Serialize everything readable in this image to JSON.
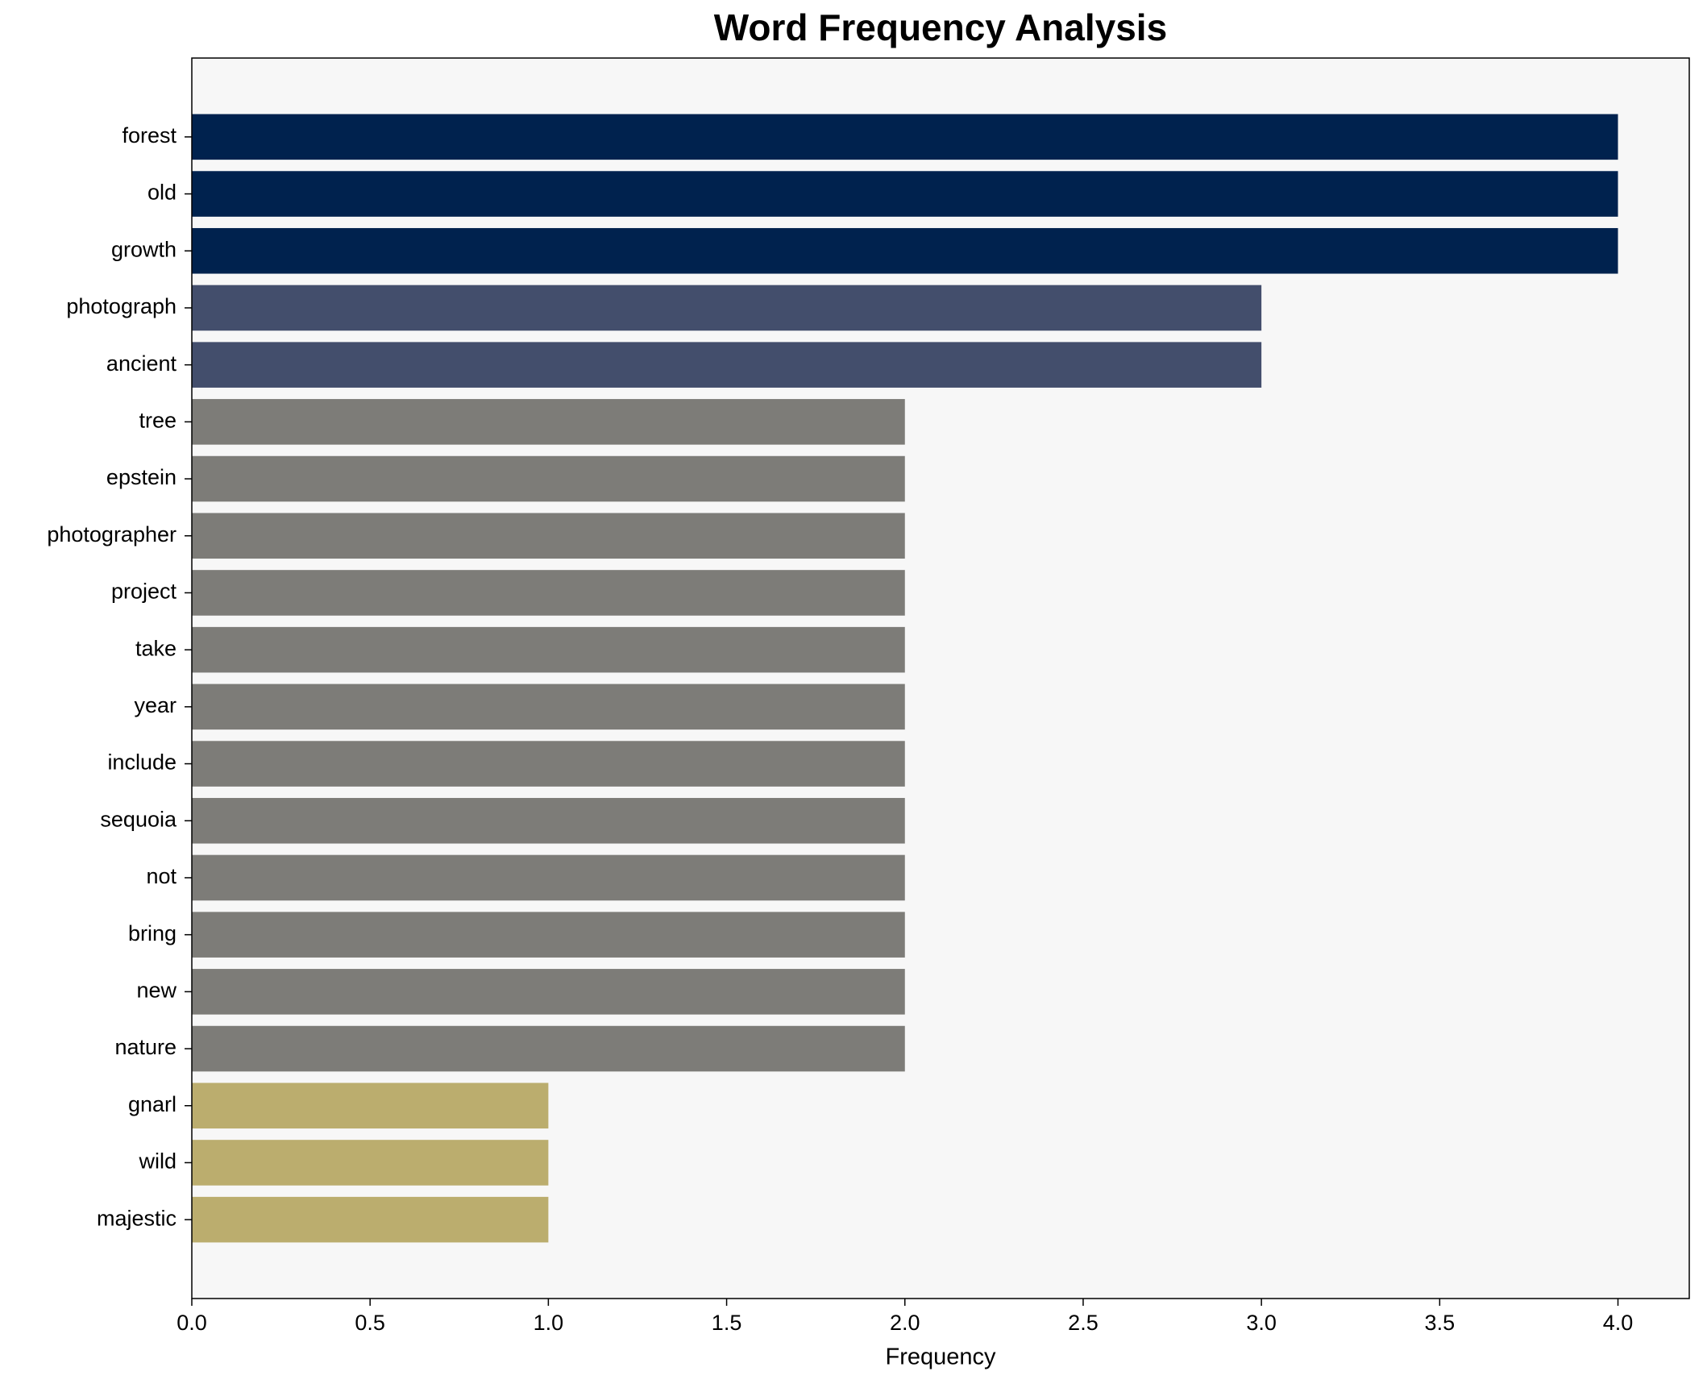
{
  "chart_data": {
    "type": "barh",
    "title": "Word Frequency Analysis",
    "x_label": "Frequency",
    "categories": [
      "forest",
      "old",
      "growth",
      "photograph",
      "ancient",
      "tree",
      "epstein",
      "photographer",
      "project",
      "take",
      "year",
      "include",
      "sequoia",
      "not",
      "bring",
      "new",
      "nature",
      "gnarl",
      "wild",
      "majestic"
    ],
    "values": [
      4,
      4,
      4,
      3,
      3,
      2,
      2,
      2,
      2,
      2,
      2,
      2,
      2,
      2,
      2,
      2,
      2,
      1,
      1,
      1
    ],
    "colors": [
      "#00224e",
      "#00224e",
      "#00224e",
      "#434e6c",
      "#434e6c",
      "#7d7c78",
      "#7d7c78",
      "#7d7c78",
      "#7d7c78",
      "#7d7c78",
      "#7d7c78",
      "#7d7c78",
      "#7d7c78",
      "#7d7c78",
      "#7d7c78",
      "#7d7c78",
      "#7d7c78",
      "#bbad6e",
      "#bbad6e",
      "#bbad6e"
    ],
    "xlim": [
      0,
      4.2
    ],
    "xticks": [
      {
        "value": 0,
        "label": "0.0"
      },
      0.5,
      {
        "value": 1,
        "label": "1.0"
      },
      1.5,
      {
        "value": 2,
        "label": "2.0"
      },
      2.5,
      {
        "value": 3,
        "label": "3.0"
      },
      3.5,
      {
        "value": 4,
        "label": "4.0"
      }
    ],
    "grid": false
  }
}
